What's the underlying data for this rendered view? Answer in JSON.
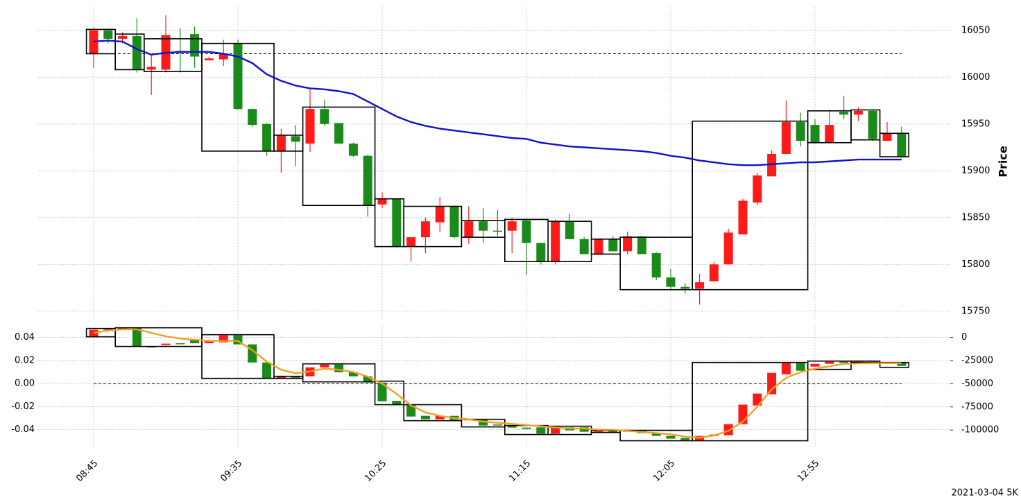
{
  "chart_data": [
    {
      "type": "candlestick",
      "y_axis_side": "right",
      "y_label": "Price",
      "grid": true,
      "ylim": [
        15740,
        16075
      ],
      "yticks": [
        15750,
        15800,
        15850,
        15900,
        15950,
        16000,
        16050
      ],
      "up_color": "#ff1a1a",
      "down_color": "#1a8a1a",
      "open": [
        16025,
        16050,
        16041,
        16044,
        16008,
        16008,
        16028,
        16046,
        16018,
        16019,
        16036,
        15966,
        15950,
        15921,
        15937,
        15929,
        15966,
        15951,
        15929,
        15916,
        15864,
        15870,
        15819,
        15829,
        15845,
        15862,
        15829,
        15846,
        15836,
        15836,
        15847,
        15823,
        15803,
        15846,
        15827,
        15811,
        15827,
        15814,
        15830,
        15812,
        15786,
        15776,
        15774,
        15782,
        15800,
        15832,
        15866,
        15894,
        15918,
        15952,
        15949,
        15930,
        15963,
        15960,
        15964,
        15932,
        15940
      ],
      "high": [
        16053,
        16052,
        16048,
        16063,
        16024,
        16066,
        16052,
        16054,
        16022,
        16040,
        16040,
        15966,
        15951,
        15945,
        15949,
        15987,
        15976,
        15951,
        15930,
        15917,
        15877,
        15870,
        15829,
        15850,
        15872,
        15863,
        15862,
        15860,
        15858,
        15850,
        15848,
        15823,
        15848,
        15854,
        15829,
        15827,
        15830,
        15835,
        15830,
        15813,
        15795,
        15780,
        15790,
        15803,
        15838,
        15870,
        15898,
        15922,
        15975,
        15962,
        15955,
        15965,
        15980,
        15968,
        15965,
        15952,
        15947
      ],
      "low": [
        16010,
        16036,
        16036,
        16005,
        15981,
        16005,
        16005,
        16010,
        16018,
        16012,
        15965,
        15947,
        15916,
        15898,
        15905,
        15920,
        15948,
        15929,
        15915,
        15851,
        15860,
        15818,
        15803,
        15812,
        15835,
        15828,
        15822,
        15823,
        15830,
        15812,
        15789,
        15800,
        15800,
        15827,
        15811,
        15810,
        15814,
        15811,
        15811,
        15783,
        15772,
        15769,
        15757,
        15782,
        15800,
        15832,
        15863,
        15894,
        15918,
        15926,
        15929,
        15930,
        15955,
        15953,
        15932,
        15932,
        15914
      ],
      "close": [
        16050,
        16041,
        16044,
        16008,
        16011,
        16045,
        16026,
        16022,
        16020,
        16025,
        15966,
        15949,
        15921,
        15938,
        15931,
        15966,
        15950,
        15929,
        15916,
        15863,
        15870,
        15819,
        15829,
        15846,
        15862,
        15829,
        15846,
        15836,
        15835,
        15846,
        15823,
        15803,
        15846,
        15827,
        15811,
        15827,
        15814,
        15830,
        15811,
        15786,
        15776,
        15774,
        15781,
        15800,
        15834,
        15868,
        15895,
        15918,
        15952,
        15932,
        15930,
        15949,
        15960,
        15964,
        15934,
        15940,
        15915
      ],
      "line": {
        "color": "#1010cc",
        "values": [
          16038,
          16039,
          16038,
          16030,
          16024,
          16026,
          16027,
          16027,
          16027,
          16025,
          16022,
          16015,
          16003,
          15996,
          15991,
          15988,
          15987,
          15985,
          15982,
          15974,
          15966,
          15958,
          15952,
          15948,
          15945,
          15943,
          15941,
          15939,
          15937,
          15935,
          15934,
          15930,
          15928,
          15926,
          15925,
          15924,
          15923,
          15922,
          15921,
          15919,
          15916,
          15914,
          15911,
          15909,
          15907,
          15906,
          15906,
          15907,
          15908,
          15909,
          15909,
          15910,
          15911,
          15912,
          15912,
          15912,
          15912
        ]
      },
      "reference_line": 16025,
      "boxes": [
        {
          "start": 0,
          "end": 1,
          "high": 16051,
          "low": 16025
        },
        {
          "start": 2,
          "end": 3,
          "high": 16046,
          "low": 16008
        },
        {
          "start": 4,
          "end": 7,
          "high": 16041,
          "low": 16006
        },
        {
          "start": 8,
          "end": 12,
          "high": 16036,
          "low": 15921
        },
        {
          "start": 13,
          "end": 14,
          "high": 15938,
          "low": 15921
        },
        {
          "start": 15,
          "end": 19,
          "high": 15968,
          "low": 15863
        },
        {
          "start": 20,
          "end": 21,
          "high": 15870,
          "low": 15819
        },
        {
          "start": 22,
          "end": 25,
          "high": 15862,
          "low": 15819
        },
        {
          "start": 26,
          "end": 28,
          "high": 15847,
          "low": 15829
        },
        {
          "start": 29,
          "end": 31,
          "high": 15848,
          "low": 15803
        },
        {
          "start": 32,
          "end": 34,
          "high": 15846,
          "low": 15803
        },
        {
          "start": 35,
          "end": 36,
          "high": 15827,
          "low": 15811
        },
        {
          "start": 37,
          "end": 41,
          "high": 15829,
          "low": 15773
        },
        {
          "start": 42,
          "end": 49,
          "high": 15953,
          "low": 15773
        },
        {
          "start": 50,
          "end": 52,
          "high": 15964,
          "low": 15930
        },
        {
          "start": 53,
          "end": 54,
          "high": 15965,
          "low": 15933
        },
        {
          "start": 55,
          "end": 56,
          "high": 15940,
          "low": 15915
        }
      ]
    },
    {
      "type": "candlestick",
      "y_axis_side": "left",
      "grid": true,
      "categories": [
        "08:45",
        null,
        null,
        null,
        null,
        null,
        null,
        null,
        null,
        null,
        "09:35",
        null,
        null,
        null,
        null,
        null,
        null,
        null,
        null,
        null,
        "10:25",
        null,
        null,
        null,
        null,
        null,
        null,
        null,
        null,
        null,
        "11:15",
        null,
        null,
        null,
        null,
        null,
        null,
        null,
        null,
        null,
        "12:05",
        null,
        null,
        null,
        null,
        null,
        null,
        null,
        null,
        null,
        "12:55",
        null,
        null,
        null,
        null,
        null,
        null
      ],
      "ylim": [
        -0.056,
        0.05
      ],
      "yticks": [
        -0.04,
        -0.02,
        {
          "value": 0,
          "label": "0.00"
        },
        0.02,
        0.04
      ],
      "y2lim": [
        -119500,
        12500
      ],
      "y2ticks": [
        -100000,
        -75000,
        -50000,
        -25000,
        0
      ],
      "up_color": "#ff1a1a",
      "down_color": "#1a8a1a",
      "open": [
        0.041,
        0.0466,
        0.0475,
        0.048,
        0.0322,
        0.0334,
        0.035,
        0.038,
        0.035,
        0.0358,
        0.0418,
        0.034,
        0.0183,
        0.0045,
        0.0063,
        0.0063,
        0.0141,
        0.0165,
        0.0099,
        0.0063,
        0.0009,
        -0.015,
        -0.0183,
        -0.028,
        -0.031,
        -0.028,
        -0.0316,
        -0.0316,
        -0.0355,
        -0.0364,
        -0.0382,
        -0.038,
        -0.0436,
        -0.038,
        -0.038,
        -0.0418,
        -0.041,
        -0.0418,
        -0.0412,
        -0.043,
        -0.0454,
        -0.0472,
        -0.049,
        -0.0454,
        -0.0448,
        -0.0352,
        -0.019,
        -0.0093,
        0.0081,
        0.0177,
        0.0147,
        0.0171,
        0.0189,
        0.0185,
        0.0189,
        0.0183,
        0.0183
      ],
      "close": [
        0.0466,
        0.0475,
        0.048,
        0.0322,
        0.0316,
        0.0346,
        0.0345,
        0.035,
        0.0365,
        0.0418,
        0.034,
        0.0183,
        0.0045,
        0.0063,
        0.005,
        0.0141,
        0.0165,
        0.0099,
        0.0063,
        0.0009,
        -0.0153,
        -0.0183,
        -0.0286,
        -0.031,
        -0.028,
        -0.0316,
        -0.031,
        -0.0364,
        -0.036,
        -0.0382,
        -0.0394,
        -0.0436,
        -0.038,
        -0.0406,
        -0.0418,
        -0.041,
        -0.0418,
        -0.0406,
        -0.043,
        -0.0454,
        -0.0478,
        -0.049,
        -0.0454,
        -0.0442,
        -0.0352,
        -0.0183,
        -0.0087,
        0.0093,
        0.0177,
        0.0111,
        0.0171,
        0.0189,
        0.0185,
        0.0189,
        0.0183,
        0.0187,
        0.0153
      ],
      "line": {
        "color": "#f0a020",
        "values": [
          0.044,
          0.046,
          0.047,
          0.047,
          0.044,
          0.041,
          0.039,
          0.038,
          0.037,
          0.037,
          0.037,
          0.029,
          0.019,
          0.012,
          0.009,
          0.0105,
          0.013,
          0.012,
          0.01,
          0.006,
          0.0,
          -0.009,
          -0.019,
          -0.025,
          -0.028,
          -0.03,
          -0.031,
          -0.033,
          -0.034,
          -0.035,
          -0.036,
          -0.037,
          -0.038,
          -0.039,
          -0.039,
          -0.04,
          -0.04,
          -0.041,
          -0.042,
          -0.043,
          -0.044,
          -0.046,
          -0.047,
          -0.045,
          -0.041,
          -0.033,
          -0.02,
          -0.005,
          0.005,
          0.01,
          0.013,
          0.015,
          0.017,
          0.0175,
          0.0177,
          0.0177,
          0.0177
        ]
      },
      "reference_line": 0,
      "boxes": [
        {
          "start": 0,
          "end": 1,
          "high": 0.0478,
          "low": 0.0406
        },
        {
          "start": 2,
          "end": 7,
          "high": 0.0484,
          "low": 0.0322
        },
        {
          "start": 8,
          "end": 12,
          "high": 0.0424,
          "low": 0.0045
        },
        {
          "start": 13,
          "end": 14,
          "high": 0.0063,
          "low": 0.0045
        },
        {
          "start": 15,
          "end": 19,
          "high": 0.0171,
          "low": 0.0015
        },
        {
          "start": 20,
          "end": 21,
          "high": 0.0021,
          "low": -0.0183
        },
        {
          "start": 22,
          "end": 25,
          "high": -0.0183,
          "low": -0.0322
        },
        {
          "start": 26,
          "end": 28,
          "high": -0.031,
          "low": -0.0376
        },
        {
          "start": 29,
          "end": 31,
          "high": -0.0364,
          "low": -0.0442
        },
        {
          "start": 32,
          "end": 34,
          "high": -0.037,
          "low": -0.0442
        },
        {
          "start": 35,
          "end": 36,
          "high": -0.0406,
          "low": -0.0424
        },
        {
          "start": 37,
          "end": 41,
          "high": -0.0406,
          "low": -0.0496
        },
        {
          "start": 42,
          "end": 49,
          "high": 0.0183,
          "low": -0.0496
        },
        {
          "start": 50,
          "end": 52,
          "high": 0.0195,
          "low": 0.0123
        },
        {
          "start": 53,
          "end": 54,
          "high": 0.0195,
          "low": 0.0183
        },
        {
          "start": 55,
          "end": 56,
          "high": 0.0183,
          "low": 0.0141
        }
      ]
    }
  ],
  "footer": "2021-03-04 5K"
}
